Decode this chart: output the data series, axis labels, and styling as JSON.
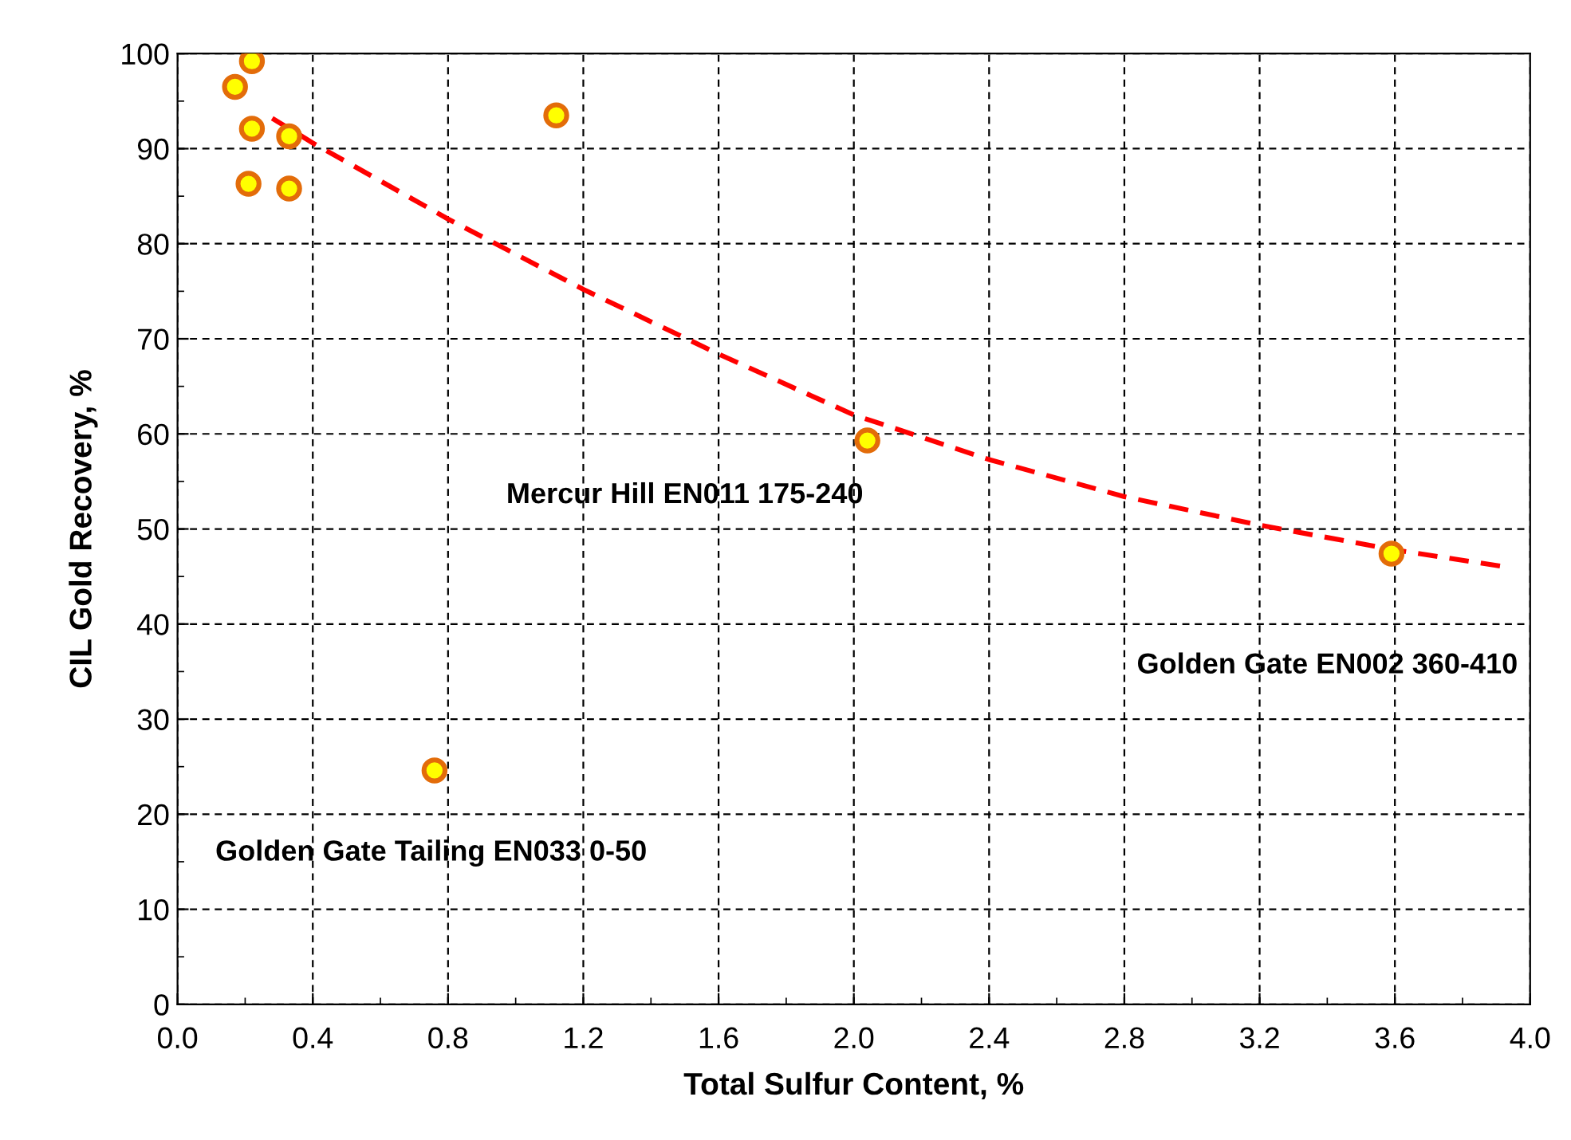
{
  "chart_data": {
    "type": "scatter",
    "xlabel": "Total Sulfur Content, %",
    "ylabel": "CIL Gold Recovery, %",
    "xlim": [
      0,
      4
    ],
    "xticks": [
      {
        "value": 0,
        "label": "0.0"
      },
      {
        "value": 0.4,
        "label": "0.4"
      },
      {
        "value": 0.8,
        "label": "0.8"
      },
      {
        "value": 1.2,
        "label": "1.2"
      },
      {
        "value": 1.6,
        "label": "1.6"
      },
      {
        "value": 2.0,
        "label": "2.0"
      },
      {
        "value": 2.4,
        "label": "2.4"
      },
      {
        "value": 2.8,
        "label": "2.8"
      },
      {
        "value": 3.2,
        "label": "3.2"
      },
      {
        "value": 3.6,
        "label": "3.6"
      },
      {
        "value": 4.0,
        "label": "4.0"
      }
    ],
    "ylim": [
      0,
      100
    ],
    "yticks": [
      0,
      10,
      20,
      30,
      40,
      50,
      60,
      70,
      80,
      90,
      100
    ],
    "grid": true,
    "series": [
      {
        "marker": "circle",
        "color": "#ffff00",
        "x": [
          0.17,
          0.22,
          0.22,
          0.21,
          0.33,
          0.33,
          1.12,
          0.76,
          2.04,
          3.59
        ],
        "values": [
          96.5,
          99.2,
          92.1,
          86.3,
          91.3,
          85.8,
          93.5,
          24.6,
          59.3,
          47.4
        ]
      },
      {
        "type": "line",
        "color": "#ff0000",
        "line_style": "dashed",
        "x": [
          0.28,
          0.4,
          0.8,
          1.2,
          1.6,
          2.0,
          2.4,
          2.8,
          3.2,
          3.6,
          3.93
        ],
        "values": [
          93.2,
          90.6,
          82.6,
          75.2,
          68.4,
          62.0,
          57.3,
          53.4,
          50.4,
          47.8,
          46.0
        ]
      }
    ],
    "annotations": [
      "Mercur Hill EN011 175-240",
      "Golden Gate EN002 360-410",
      "Golden Gate Tailing EN033 0-50"
    ]
  }
}
